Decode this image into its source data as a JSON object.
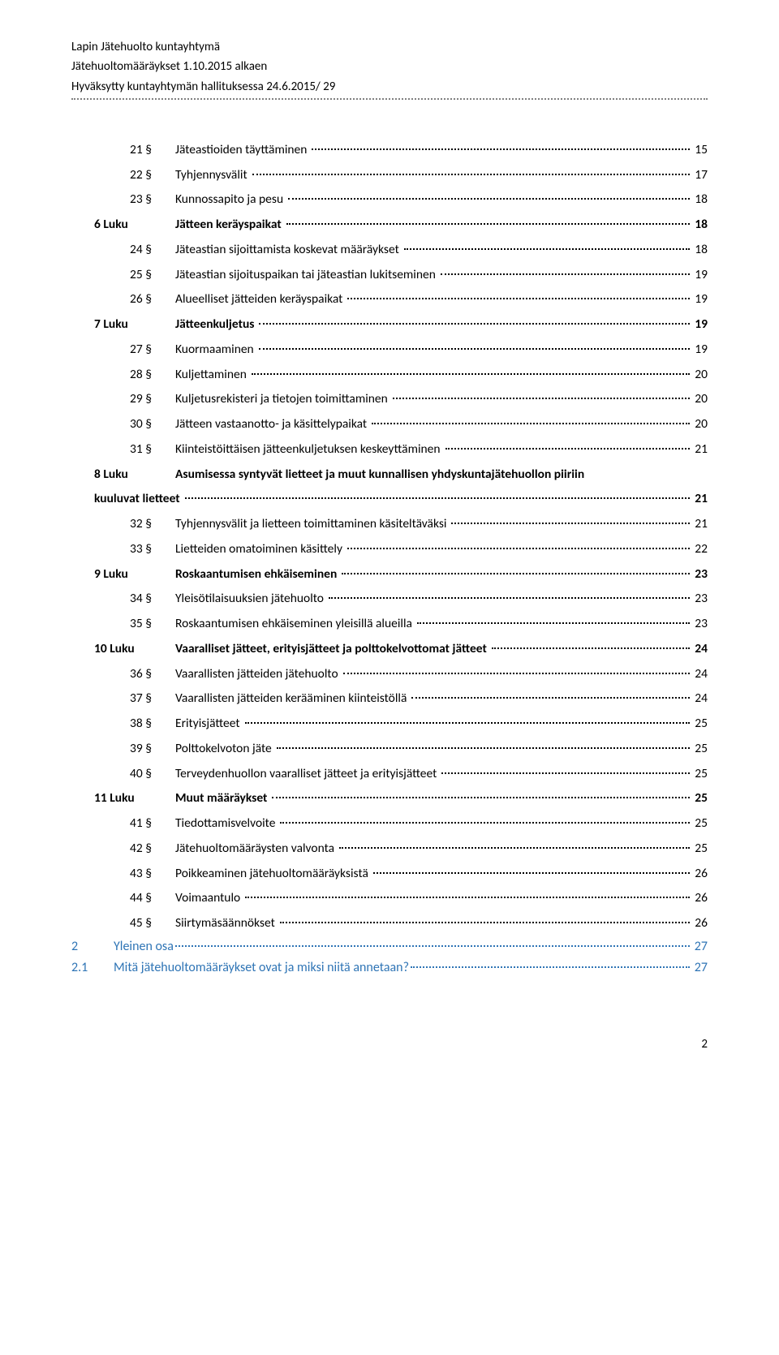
{
  "header": {
    "line1": "Lapin Jätehuolto kuntayhtymä",
    "line2": "Jätehuoltomääräykset 1.10.2015 alkaen",
    "line3": "Hyväksytty kuntayhtymän hallituksessa 24.6.2015/ 29"
  },
  "toc": [
    {
      "lvl": 1,
      "num": "21 §",
      "title": "Jäteastioiden täyttäminen",
      "pg": "15"
    },
    {
      "lvl": 1,
      "num": "22 §",
      "title": "Tyhjennysvälit",
      "pg": "17"
    },
    {
      "lvl": 1,
      "num": "23 §",
      "title": "Kunnossapito ja pesu",
      "pg": "18"
    },
    {
      "lvl": 0,
      "num": "6 Luku",
      "title": "Jätteen keräyspaikat",
      "pg": "18"
    },
    {
      "lvl": 1,
      "num": "24 §",
      "title": "Jäteastian sijoittamista koskevat määräykset",
      "pg": "18"
    },
    {
      "lvl": 1,
      "num": "25 §",
      "title": "Jäteastian sijoituspaikan tai jäteastian lukitseminen",
      "pg": "19"
    },
    {
      "lvl": 1,
      "num": "26 §",
      "title": "Alueelliset jätteiden keräyspaikat",
      "pg": "19"
    },
    {
      "lvl": 0,
      "num": "7 Luku",
      "title": "Jätteenkuljetus",
      "pg": "19"
    },
    {
      "lvl": 1,
      "num": "27 §",
      "title": "Kuormaaminen",
      "pg": "19"
    },
    {
      "lvl": 1,
      "num": "28 §",
      "title": "Kuljettaminen",
      "pg": "20"
    },
    {
      "lvl": 1,
      "num": "29 §",
      "title": "Kuljetusrekisteri ja tietojen toimittaminen",
      "pg": "20"
    },
    {
      "lvl": 1,
      "num": "30 §",
      "title": "Jätteen vastaanotto- ja käsittelypaikat",
      "pg": "20"
    },
    {
      "lvl": 1,
      "num": "31 §",
      "title": "Kiinteistöittäisen jätteenkuljetuksen keskeyttäminen",
      "pg": "21"
    },
    {
      "lvl": "wrap",
      "num": "8 Luku",
      "title_line1": "Asumisessa syntyvät lietteet ja muut kunnallisen yhdyskuntajätehuollon piiriin",
      "title_line2": "kuuluvat lietteet",
      "pg": "21"
    },
    {
      "lvl": 1,
      "num": "32 §",
      "title": "Tyhjennysvälit ja lietteen toimittaminen käsiteltäväksi",
      "pg": "21"
    },
    {
      "lvl": 1,
      "num": "33 §",
      "title": "Lietteiden omatoiminen käsittely",
      "pg": "22"
    },
    {
      "lvl": 0,
      "num": "9 Luku",
      "title": "Roskaantumisen ehkäiseminen",
      "pg": "23"
    },
    {
      "lvl": 1,
      "num": "34 §",
      "title": "Yleisötilaisuuksien jätehuolto",
      "pg": "23"
    },
    {
      "lvl": 1,
      "num": "35 §",
      "title": "Roskaantumisen ehkäiseminen yleisillä alueilla",
      "pg": "23"
    },
    {
      "lvl": 0,
      "num": "10 Luku",
      "title": "Vaaralliset jätteet, erityisjätteet ja polttokelvottomat jätteet",
      "pg": "24"
    },
    {
      "lvl": 1,
      "num": "36 §",
      "title": "Vaarallisten jätteiden jätehuolto",
      "pg": "24"
    },
    {
      "lvl": 1,
      "num": "37 §",
      "title": "Vaarallisten jätteiden kerääminen kiinteistöllä",
      "pg": "24"
    },
    {
      "lvl": 1,
      "num": "38 §",
      "title": "Erityisjätteet",
      "pg": "25"
    },
    {
      "lvl": 1,
      "num": "39 §",
      "title": "Polttokelvoton jäte",
      "pg": "25"
    },
    {
      "lvl": 1,
      "num": "40 §",
      "title": "Terveydenhuollon vaaralliset jätteet ja erityisjätteet",
      "pg": "25"
    },
    {
      "lvl": 0,
      "num": "11 Luku",
      "title": "Muut määräykset",
      "pg": "25"
    },
    {
      "lvl": 1,
      "num": "41 §",
      "title": "Tiedottamisvelvoite",
      "pg": "25"
    },
    {
      "lvl": 1,
      "num": "42 §",
      "title": "Jätehuoltomääräysten valvonta",
      "pg": "25"
    },
    {
      "lvl": 1,
      "num": "43 §",
      "title": "Poikkeaminen jätehuoltomääräyksistä",
      "pg": "26"
    },
    {
      "lvl": 1,
      "num": "44 §",
      "title": "Voimaantulo",
      "pg": "26"
    },
    {
      "lvl": 1,
      "num": "45 §",
      "title": "Siirtymäsäännökset",
      "pg": "26"
    }
  ],
  "bottom": [
    {
      "num": "2",
      "title": "Yleinen osa",
      "pg": "27"
    },
    {
      "num": "2.1",
      "title": "Mitä jätehuoltomääräykset ovat ja miksi niitä annetaan?",
      "pg": "27"
    }
  ],
  "pagenum": "2",
  "colors": {
    "link": "#2e74b5",
    "text": "#000000",
    "rule": "#808080"
  }
}
